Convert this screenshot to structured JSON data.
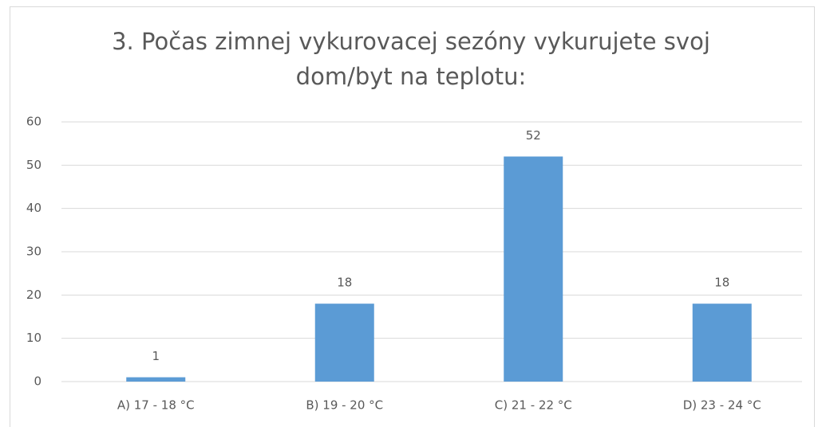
{
  "chart_data": {
    "type": "bar",
    "title": "3. Počas zimnej vykurovacej sezóny vykurujete svoj dom/byt na teplotu:",
    "categories": [
      "A) 17 - 18 °C",
      "B) 19 - 20 °C",
      "C) 21 - 22 °C",
      "D) 23 - 24 °C"
    ],
    "values": [
      1,
      18,
      52,
      18
    ],
    "color": "#5b9bd5",
    "ylim": [
      0,
      60
    ],
    "yticks": [
      0,
      10,
      20,
      30,
      40,
      50,
      60
    ],
    "grid": true
  }
}
